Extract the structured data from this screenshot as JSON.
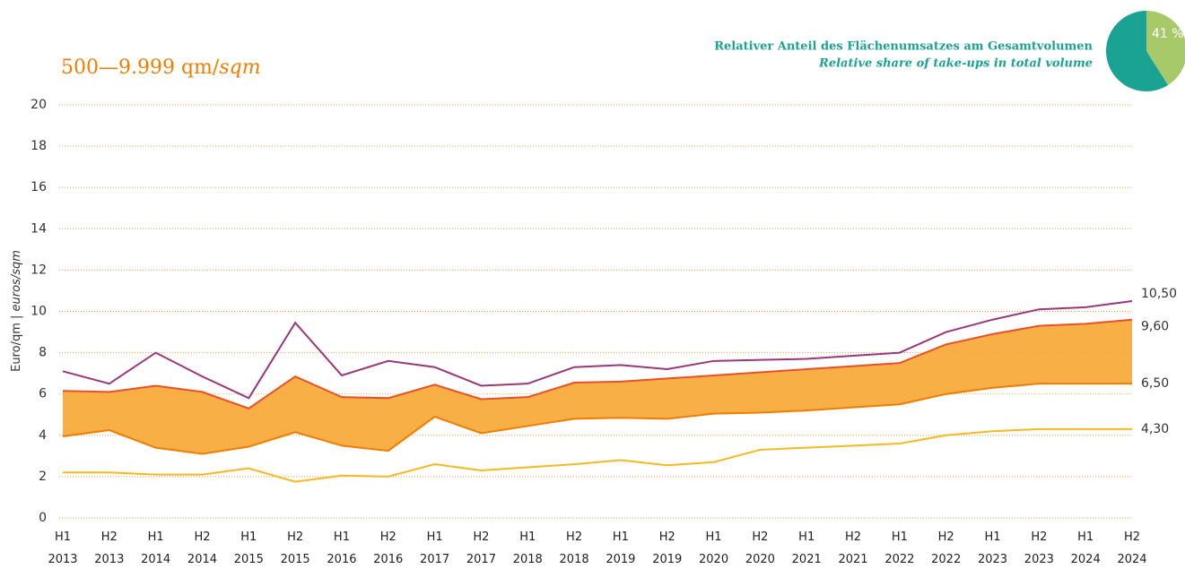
{
  "chart_data": {
    "type": "line",
    "title": "500—9.999 qm/",
    "title_italic": "sqm",
    "subtitle": "Relativer Anteil des Flächenumsatzes am Gesamtvolumen",
    "subtitle_italic": "Relative share of take-ups in total volume",
    "y_label": "Euro/qm | ",
    "y_label_italic": "euros/sqm",
    "categories": [
      "H1\n2013",
      "H2\n2013",
      "H1\n2014",
      "H2\n2014",
      "H1\n2015",
      "H2\n2015",
      "H1\n2016",
      "H2\n2016",
      "H1\n2017",
      "H2\n2017",
      "H1\n2018",
      "H2\n2018",
      "H1\n2019",
      "H2\n2019",
      "H1\n2020",
      "H2\n2020",
      "H1\n2021",
      "H2\n2021",
      "H1\n2022",
      "H2\n2022",
      "H1\n2023",
      "H2\n2023",
      "H1\n2024",
      "H2\n2024"
    ],
    "series": [
      {
        "color": "#9b3678",
        "values": [
          7.1,
          6.5,
          8.0,
          6.85,
          5.8,
          9.45,
          6.9,
          7.6,
          7.3,
          6.4,
          6.5,
          7.3,
          7.4,
          7.2,
          7.6,
          7.65,
          7.7,
          7.85,
          8.0,
          9.0,
          9.6,
          10.1,
          10.2,
          10.5
        ],
        "value_labels": [
          null,
          null,
          null,
          null,
          null,
          null,
          null,
          null,
          null,
          null,
          null,
          null,
          null,
          null,
          null,
          null,
          null,
          null,
          null,
          null,
          null,
          null,
          null,
          "10,50"
        ]
      },
      {
        "color": "#e8502a",
        "values": [
          6.15,
          6.1,
          6.4,
          6.1,
          5.3,
          6.85,
          5.85,
          5.8,
          6.45,
          5.75,
          5.85,
          6.55,
          6.6,
          6.75,
          6.9,
          7.05,
          7.2,
          7.35,
          7.5,
          8.4,
          8.9,
          9.3,
          9.4,
          9.6
        ],
        "value_labels": [
          null,
          null,
          null,
          null,
          null,
          null,
          null,
          null,
          null,
          null,
          null,
          null,
          null,
          null,
          null,
          null,
          null,
          null,
          null,
          null,
          null,
          null,
          null,
          "9,60"
        ]
      },
      {
        "color": "#f07d00",
        "values": [
          3.95,
          4.25,
          3.4,
          3.1,
          3.45,
          4.15,
          3.5,
          3.25,
          4.9,
          4.1,
          4.45,
          4.8,
          4.85,
          4.8,
          5.05,
          5.1,
          5.2,
          5.35,
          5.5,
          6.0,
          6.3,
          6.5,
          6.5,
          6.5
        ],
        "value_labels": [
          null,
          null,
          null,
          null,
          null,
          null,
          null,
          null,
          null,
          null,
          null,
          null,
          null,
          null,
          null,
          null,
          null,
          null,
          null,
          null,
          null,
          null,
          null,
          "6,50"
        ]
      },
      {
        "color": "#f8b820",
        "values": [
          2.2,
          2.2,
          2.1,
          2.1,
          2.4,
          1.75,
          2.05,
          2.0,
          2.6,
          2.3,
          2.45,
          2.6,
          2.8,
          2.55,
          2.7,
          3.3,
          3.4,
          3.5,
          3.6,
          4.0,
          4.2,
          4.3,
          4.3,
          4.3
        ],
        "value_labels": [
          null,
          null,
          null,
          null,
          null,
          null,
          null,
          null,
          null,
          null,
          null,
          null,
          null,
          null,
          null,
          null,
          null,
          null,
          null,
          null,
          null,
          null,
          null,
          "4,30"
        ]
      }
    ],
    "band": {
      "between": [
        1,
        2
      ],
      "color": "#f7a632"
    },
    "ylim": [
      0,
      20
    ],
    "yticks": [
      0,
      2,
      4,
      6,
      8,
      10,
      12,
      14,
      16,
      18,
      20
    ],
    "grid": true,
    "inset": {
      "type": "pie",
      "values": [
        41,
        59
      ],
      "value_labels": [
        "41 %",
        null
      ],
      "colors": [
        "#a8c96a",
        "#1aa393"
      ]
    }
  }
}
